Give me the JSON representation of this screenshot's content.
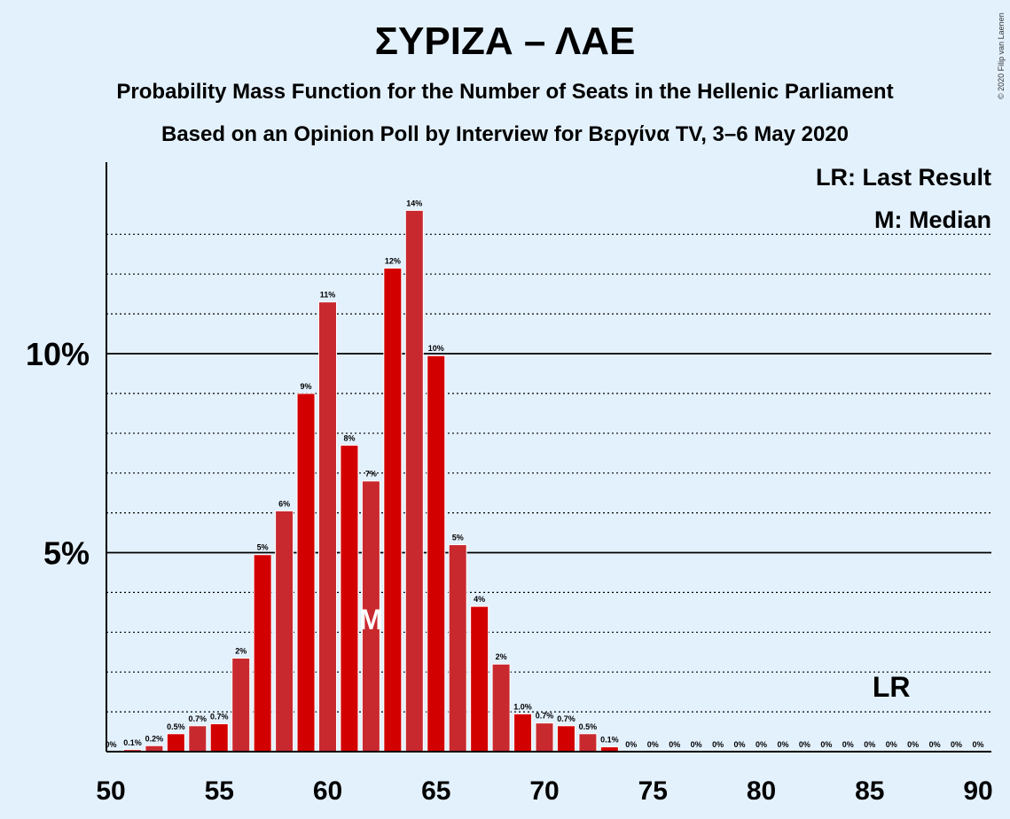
{
  "title": "ΣΥΡΙΖΑ – ΛΑΕ",
  "subtitle": "Probability Mass Function for the Number of Seats in the Hellenic Parliament",
  "subtitle2": "Based on an Opinion Poll by Interview for Βεργίνα TV, 3–6 May 2020",
  "copyright": "© 2020 Filip van Laenen",
  "legend": {
    "lr": "LR: Last Result",
    "median": "M: Median"
  },
  "markers": {
    "median_label": "M",
    "median_seat": 62,
    "last_result_label": "LR",
    "last_result_seat": 86
  },
  "colors": {
    "background": "#e3f1fd",
    "bar_light": "#c8292f",
    "bar_dark": "#d30000"
  },
  "chart_data": {
    "type": "bar",
    "title": "ΣΥΡΙΖΑ – ΛΑΕ",
    "xlabel": "",
    "ylabel": "",
    "xlim": [
      50,
      90
    ],
    "ylim": [
      0,
      14.8
    ],
    "x_ticks": [
      50,
      55,
      60,
      65,
      70,
      75,
      80,
      85,
      90
    ],
    "y_ticks": [
      {
        "value": 5,
        "label": "5%"
      },
      {
        "value": 10,
        "label": "10%"
      }
    ],
    "grid": "dotted every 1%, solid at 5% and 10%",
    "legend_position": "top-right",
    "x": [
      50,
      51,
      52,
      53,
      54,
      55,
      56,
      57,
      58,
      59,
      60,
      61,
      62,
      63,
      64,
      65,
      66,
      67,
      68,
      69,
      70,
      71,
      72,
      73,
      74,
      75,
      76,
      77,
      78,
      79,
      80,
      81,
      82,
      83,
      84,
      85,
      86,
      87,
      88,
      89,
      90
    ],
    "values": [
      0,
      0.05,
      0.15,
      0.45,
      0.65,
      0.7,
      2.35,
      4.95,
      6.05,
      9.0,
      11.3,
      7.7,
      6.8,
      12.15,
      13.6,
      9.95,
      5.2,
      3.65,
      2.2,
      0.95,
      0.72,
      0.65,
      0.45,
      0.12,
      0,
      0,
      0,
      0,
      0,
      0,
      0,
      0,
      0,
      0,
      0,
      0,
      0,
      0,
      0,
      0,
      0
    ],
    "labels": [
      "0%",
      "0.1%",
      "0.2%",
      "0.5%",
      "0.7%",
      "0.7%",
      "2%",
      "5%",
      "6%",
      "9%",
      "11%",
      "8%",
      "7%",
      "12%",
      "14%",
      "10%",
      "5%",
      "4%",
      "2%",
      "1.0%",
      "0.7%",
      "0.7%",
      "0.5%",
      "0.1%",
      "0%",
      "0%",
      "0%",
      "0%",
      "0%",
      "0%",
      "0%",
      "0%",
      "0%",
      "0%",
      "0%",
      "0%",
      "0%",
      "0%",
      "0%",
      "0%",
      "0%"
    ]
  }
}
